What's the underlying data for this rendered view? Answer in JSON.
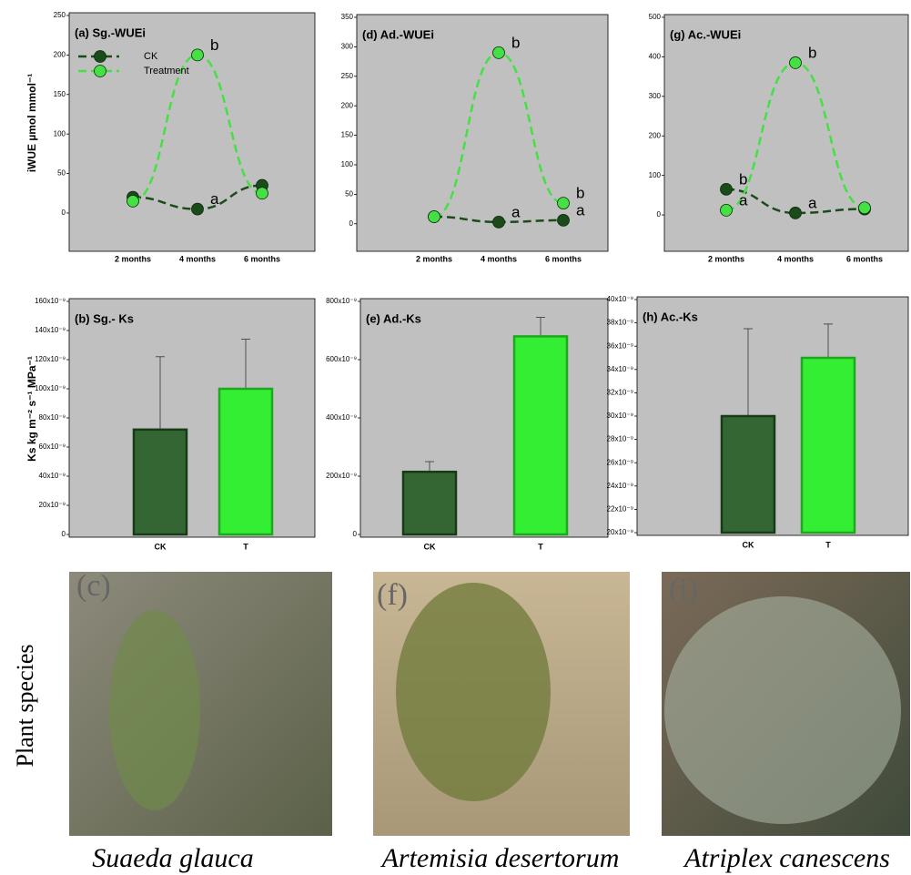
{
  "chart_data": [
    {
      "type": "line",
      "title": "(a) Sg.-WUEi",
      "ylabel": "iWUE  µmol mmol⁻¹",
      "categories": [
        "2 months",
        "4 months",
        "6 months"
      ],
      "series": [
        {
          "name": "CK",
          "color": "#1b4a1b",
          "values": [
            20,
            5,
            35
          ],
          "labels": [
            null,
            "a",
            null
          ]
        },
        {
          "name": "Treatment",
          "color": "#44e044",
          "values": [
            15,
            200,
            25
          ],
          "labels": [
            null,
            "b",
            null
          ]
        }
      ],
      "ylim": [
        -45,
        250
      ],
      "yticks": [
        0,
        50,
        100,
        150,
        200,
        250
      ],
      "legend": "upper left"
    },
    {
      "type": "line",
      "title": "(d) Ad.-WUEi",
      "categories": [
        "2 months",
        "4 months",
        "6 months"
      ],
      "series": [
        {
          "color": "#1b4a1b",
          "values": [
            12,
            3,
            6
          ],
          "labels": [
            null,
            "a",
            "a"
          ]
        },
        {
          "color": "#44e044",
          "values": [
            12,
            290,
            35
          ],
          "labels": [
            null,
            "b",
            "b"
          ]
        }
      ],
      "ylim": [
        -42,
        350
      ],
      "yticks": [
        0,
        50,
        100,
        150,
        200,
        250,
        300,
        350
      ]
    },
    {
      "type": "line",
      "title": "(g) Ac.-WUEi",
      "categories": [
        "2 months",
        "4 months",
        "6 months"
      ],
      "series": [
        {
          "color": "#1b4a1b",
          "values": [
            65,
            5,
            15
          ],
          "labels": [
            "b",
            "a",
            null
          ]
        },
        {
          "color": "#44e044",
          "values": [
            12,
            385,
            18
          ],
          "labels": [
            "a",
            "b",
            null
          ]
        }
      ],
      "ylim": [
        -85,
        500
      ],
      "yticks": [
        0,
        100,
        200,
        300,
        400,
        500
      ]
    },
    {
      "type": "bar",
      "title": "(b) Sg.- Ks",
      "ylabel": "Ks   kg m⁻² s⁻¹ MPa⁻¹",
      "categories": [
        "CK",
        "T"
      ],
      "values": [
        7.2e-08,
        1e-07
      ],
      "errors": [
        5e-08,
        3.4e-08
      ],
      "colors": [
        "#336633",
        "#33ee33"
      ],
      "edge_colors": [
        "#173a17",
        "#1fa81f"
      ],
      "ylim": [
        0,
        1.6e-07
      ],
      "yticks": [
        0,
        {
          "value": 2e-08,
          "label": "20x10⁻⁹"
        },
        {
          "value": 4e-08,
          "label": "40x10⁻⁹"
        },
        {
          "value": 6e-08,
          "label": "60x10⁻⁹"
        },
        {
          "value": 8e-08,
          "label": "80x10⁻⁹"
        },
        {
          "value": 1e-07,
          "label": "100x10⁻⁹"
        },
        {
          "value": 1.2e-07,
          "label": "120x10⁻⁹"
        },
        {
          "value": 1.4e-07,
          "label": "140x10⁻⁹"
        },
        {
          "value": 1.6e-07,
          "label": "160x10⁻⁹"
        }
      ]
    },
    {
      "type": "bar",
      "title": "(e) Ad.-Ks",
      "categories": [
        "CK",
        "T"
      ],
      "values": [
        2.15e-07,
        6.8e-07
      ],
      "errors": [
        3.5e-08,
        6.5e-08
      ],
      "colors": [
        "#336633",
        "#33ee33"
      ],
      "edge_colors": [
        "#173a17",
        "#1fa81f"
      ],
      "ylim": [
        0,
        8e-07
      ],
      "yticks": [
        0,
        {
          "value": 2e-07,
          "label": "200x10⁻⁹"
        },
        {
          "value": 4e-07,
          "label": "400x10⁻⁹"
        },
        {
          "value": 6e-07,
          "label": "600x10⁻⁹"
        },
        {
          "value": 8e-07,
          "label": "800x10⁻⁹"
        }
      ]
    },
    {
      "type": "bar",
      "title": "(h) Ac.-Ks",
      "categories": [
        "CK",
        "T"
      ],
      "values": [
        3e-08,
        3.5e-08
      ],
      "errors": [
        7.5e-09,
        2.9e-09
      ],
      "colors": [
        "#336633",
        "#33ee33"
      ],
      "edge_colors": [
        "#173a17",
        "#1fa81f"
      ],
      "ylim": [
        2e-08,
        4e-08
      ],
      "yticks": [
        {
          "value": 2e-08,
          "label": "20x10⁻⁹"
        },
        {
          "value": 2.2e-08,
          "label": "22x10⁻⁹"
        },
        {
          "value": 2.4e-08,
          "label": "24x10⁻⁹"
        },
        {
          "value": 2.6e-08,
          "label": "26x10⁻⁹"
        },
        {
          "value": 2.8e-08,
          "label": "28x10⁻⁹"
        },
        {
          "value": 3e-08,
          "label": "30x10⁻⁹"
        },
        {
          "value": 3.2e-08,
          "label": "32x10⁻⁹"
        },
        {
          "value": 3.4e-08,
          "label": "34x10⁻⁹"
        },
        {
          "value": 3.6e-08,
          "label": "36x10⁻⁹"
        },
        {
          "value": 3.8e-08,
          "label": "38x10⁻⁹"
        },
        {
          "value": 4e-08,
          "label": "40x10⁻⁹"
        }
      ]
    }
  ],
  "row_label": "Plant species",
  "photos": [
    {
      "label": "(c)",
      "caption": "Suaeda glauca"
    },
    {
      "label": "(f)",
      "caption": "Artemisia desertorum"
    },
    {
      "label": "(i)",
      "caption": "Atriplex canescens"
    }
  ]
}
